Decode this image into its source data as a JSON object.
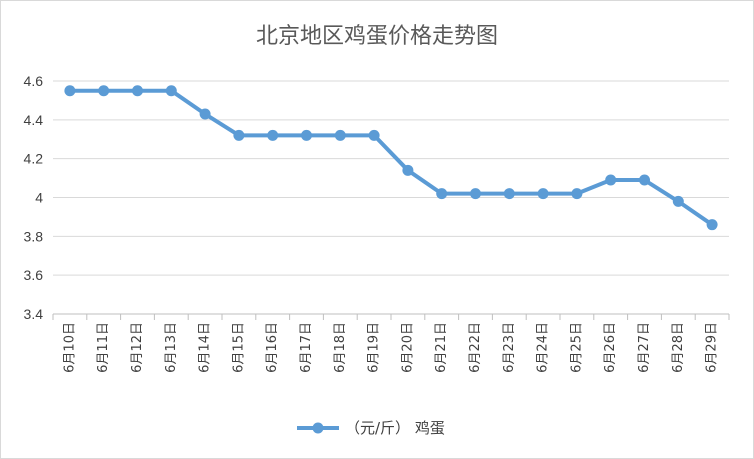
{
  "chart_data": {
    "type": "line",
    "title": "北京地区鸡蛋价格走势图",
    "categories": [
      "6月10日",
      "6月11日",
      "6月12日",
      "6月13日",
      "6月14日",
      "6月15日",
      "6月16日",
      "6月17日",
      "6月18日",
      "6月19日",
      "6月20日",
      "6月21日",
      "6月22日",
      "6月23日",
      "6月24日",
      "6月25日",
      "6月26日",
      "6月27日",
      "6月28日",
      "6月29日"
    ],
    "series": [
      {
        "name": "（元/斤）  鸡蛋",
        "color": "#5b9bd5",
        "values": [
          4.55,
          4.55,
          4.55,
          4.55,
          4.43,
          4.32,
          4.32,
          4.32,
          4.32,
          4.32,
          4.14,
          4.02,
          4.02,
          4.02,
          4.02,
          4.02,
          4.09,
          4.09,
          3.98,
          3.86
        ]
      }
    ],
    "ylim": [
      3.4,
      4.6
    ],
    "yticks": [
      3.4,
      3.6,
      3.8,
      4,
      4.2,
      4.4,
      4.6
    ],
    "ytick_labels": [
      "3.4",
      "3.6",
      "3.8",
      "4",
      "4.2",
      "4.4",
      "4.6"
    ],
    "grid": true,
    "legend_position": "bottom"
  }
}
